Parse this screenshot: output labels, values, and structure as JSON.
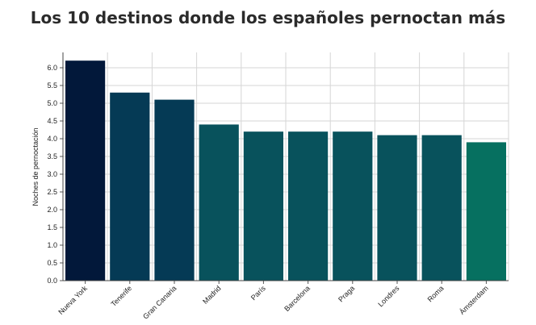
{
  "chart_data": {
    "type": "bar",
    "title": "Los 10 destinos donde los españoles pernoctan más",
    "ylabel": "Noches de pernoctación",
    "xlabel": "",
    "ylim": [
      0,
      6.0
    ],
    "yticks": [
      "0.0",
      "0.5",
      "1.0",
      "1.5",
      "2.0",
      "2.5",
      "3.0",
      "3.5",
      "4.0",
      "4.5",
      "5.0",
      "5.5",
      "6.0"
    ],
    "grid": true,
    "categories": [
      "Nueva York",
      "Tenerife",
      "Gran Canaria",
      "Madrid",
      "París",
      "Barcelona",
      "Praga",
      "Londres",
      "Roma",
      "Ámsterdam"
    ],
    "values": [
      6.2,
      5.3,
      5.1,
      4.4,
      4.2,
      4.2,
      4.2,
      4.1,
      4.1,
      3.9
    ],
    "colors": [
      "#02183a",
      "#053a55",
      "#053a55",
      "#08525c",
      "#08525c",
      "#08525c",
      "#08525c",
      "#08525c",
      "#08525c",
      "#067060"
    ]
  }
}
